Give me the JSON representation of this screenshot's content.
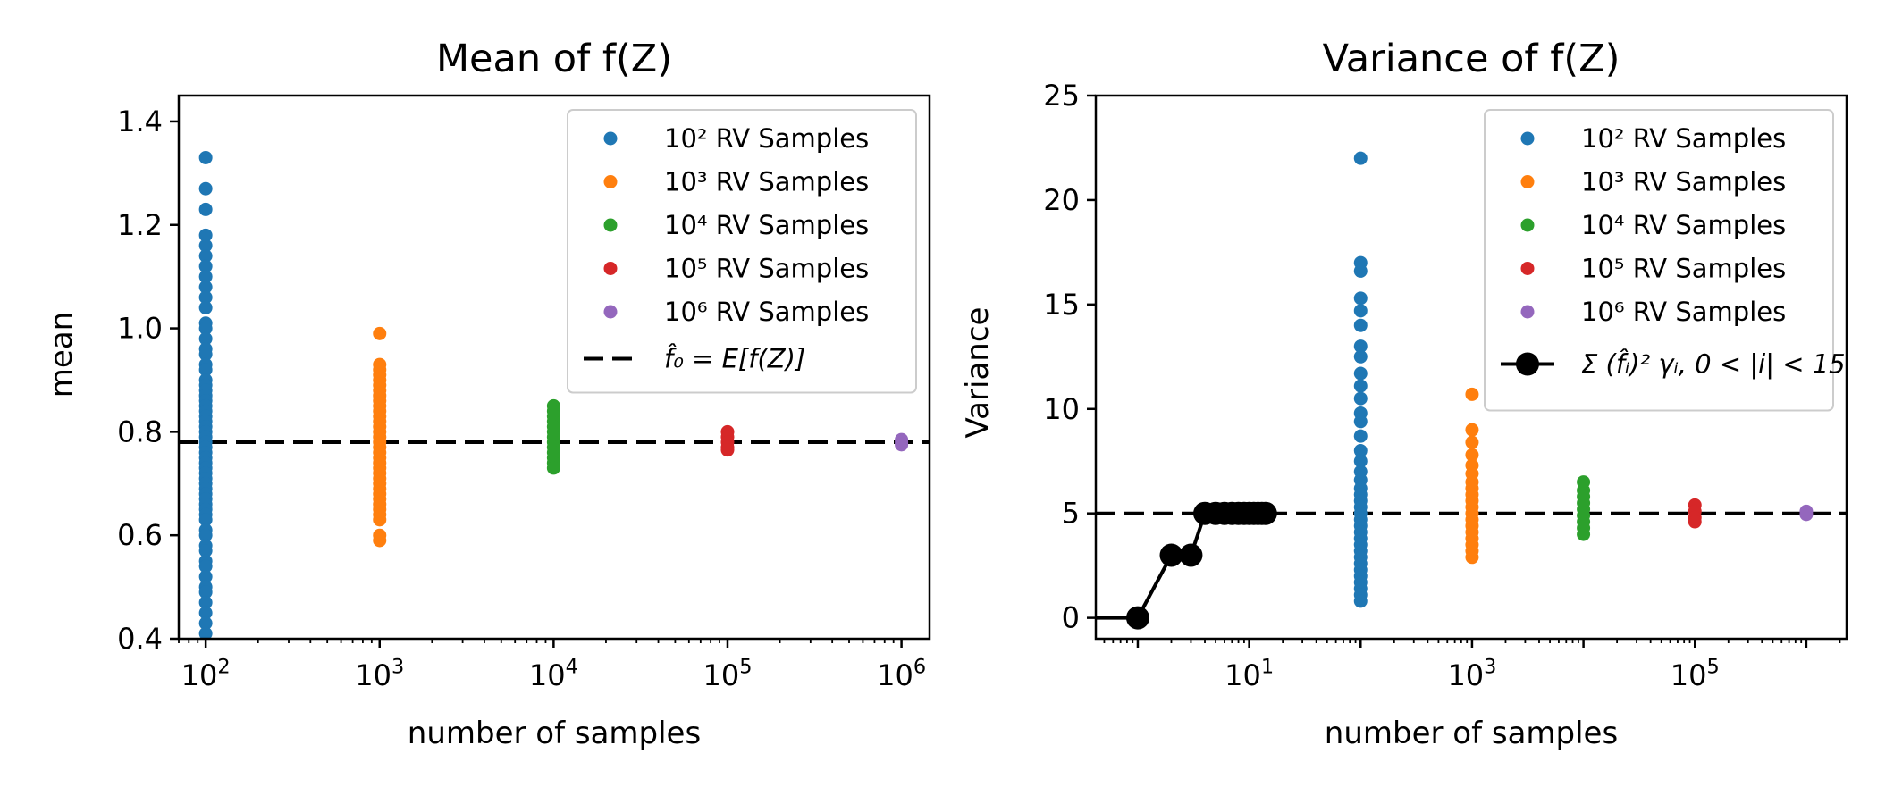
{
  "chart_data": [
    {
      "type": "scatter",
      "title": "Mean of f(Z)",
      "xlabel": "number of samples",
      "ylabel": "mean",
      "xscale": "log",
      "xlim": [
        70,
        1450000
      ],
      "ylim": [
        0.4,
        1.45
      ],
      "yticks": [
        0.4,
        0.6,
        0.8,
        1.0,
        1.2,
        1.4
      ],
      "ytick_labels": [
        "0.4",
        "0.6",
        "0.8",
        "1.0",
        "1.2",
        "1.4"
      ],
      "xticks": [
        100,
        1000,
        10000,
        100000,
        1000000
      ],
      "xtick_labels": [
        {
          "base": "10",
          "exp": "2"
        },
        {
          "base": "10",
          "exp": "3"
        },
        {
          "base": "10",
          "exp": "4"
        },
        {
          "base": "10",
          "exp": "5"
        },
        {
          "base": "10",
          "exp": "6"
        }
      ],
      "legend_position": "top-right",
      "series": [
        {
          "name": "10² RV Samples",
          "color": "#1f77b4",
          "x": 100,
          "values": [
            1.33,
            1.27,
            1.23,
            1.18,
            1.16,
            1.14,
            1.12,
            1.1,
            1.08,
            1.06,
            1.04,
            1.01,
            1.0,
            0.98,
            0.96,
            0.95,
            0.93,
            0.92,
            0.9,
            0.89,
            0.88,
            0.87,
            0.86,
            0.85,
            0.84,
            0.83,
            0.82,
            0.81,
            0.8,
            0.79,
            0.78,
            0.77,
            0.76,
            0.75,
            0.74,
            0.73,
            0.72,
            0.71,
            0.7,
            0.69,
            0.68,
            0.67,
            0.66,
            0.65,
            0.64,
            0.63,
            0.61,
            0.6,
            0.58,
            0.57,
            0.55,
            0.54,
            0.52,
            0.5,
            0.49,
            0.47,
            0.45,
            0.43,
            0.41
          ]
        },
        {
          "name": "10³ RV Samples",
          "color": "#ff7f0e",
          "x": 1000,
          "values": [
            0.99,
            0.93,
            0.92,
            0.91,
            0.9,
            0.89,
            0.88,
            0.87,
            0.86,
            0.85,
            0.84,
            0.83,
            0.82,
            0.81,
            0.8,
            0.79,
            0.78,
            0.77,
            0.76,
            0.75,
            0.74,
            0.73,
            0.72,
            0.71,
            0.7,
            0.69,
            0.68,
            0.67,
            0.66,
            0.65,
            0.64,
            0.63,
            0.6,
            0.59
          ]
        },
        {
          "name": "10⁴ RV Samples",
          "color": "#2ca02c",
          "x": 10000,
          "values": [
            0.85,
            0.84,
            0.83,
            0.82,
            0.81,
            0.8,
            0.79,
            0.78,
            0.77,
            0.76,
            0.75,
            0.74,
            0.73
          ]
        },
        {
          "name": "10⁵ RV Samples",
          "color": "#d62728",
          "x": 100000,
          "values": [
            0.8,
            0.79,
            0.78,
            0.77,
            0.765
          ]
        },
        {
          "name": "10⁶ RV Samples",
          "color": "#9467bd",
          "x": 1000000,
          "values": [
            0.785,
            0.78,
            0.775
          ]
        }
      ],
      "reference_line": {
        "label": "f̂₀ = E[f(Z)]",
        "y": 0.78,
        "color": "#000000",
        "style": "dashed"
      }
    },
    {
      "type": "scatter",
      "title": "Variance of f(Z)",
      "xlabel": "number of samples",
      "ylabel": "Variance",
      "xscale": "log",
      "xlim": [
        0.42,
        2300000
      ],
      "ylim": [
        -1,
        25
      ],
      "yticks": [
        0,
        5,
        10,
        15,
        20,
        25
      ],
      "ytick_labels": [
        "0",
        "5",
        "10",
        "15",
        "20",
        "25"
      ],
      "xticks": [
        10,
        1000,
        100000
      ],
      "xtick_labels": [
        {
          "base": "10",
          "exp": "1"
        },
        {
          "base": "10",
          "exp": "3"
        },
        {
          "base": "10",
          "exp": "5"
        }
      ],
      "legend_position": "top-right",
      "series": [
        {
          "name": "10² RV Samples",
          "color": "#1f77b4",
          "x": 100,
          "values": [
            22.0,
            17.0,
            16.6,
            15.3,
            14.7,
            14.0,
            13.0,
            12.5,
            11.7,
            11.1,
            10.5,
            9.8,
            9.4,
            8.7,
            8.0,
            7.5,
            7.0,
            6.6,
            6.2,
            5.9,
            5.6,
            5.3,
            5.0,
            4.7,
            4.4,
            4.1,
            3.8,
            3.5,
            3.2,
            2.9,
            2.6,
            2.3,
            2.0,
            1.7,
            1.4,
            1.1,
            0.8
          ]
        },
        {
          "name": "10³ RV Samples",
          "color": "#ff7f0e",
          "x": 1000,
          "values": [
            10.7,
            9.0,
            8.4,
            7.8,
            7.3,
            6.9,
            6.5,
            6.2,
            5.9,
            5.6,
            5.3,
            5.0,
            4.7,
            4.4,
            4.1,
            3.8,
            3.5,
            3.2,
            2.9
          ]
        },
        {
          "name": "10⁴ RV Samples",
          "color": "#2ca02c",
          "x": 10000,
          "values": [
            6.5,
            6.1,
            5.8,
            5.5,
            5.2,
            4.9,
            4.6,
            4.3,
            4.0
          ]
        },
        {
          "name": "10⁵ RV Samples",
          "color": "#d62728",
          "x": 100000,
          "values": [
            5.4,
            5.1,
            4.8,
            4.6
          ]
        },
        {
          "name": "10⁶ RV Samples",
          "color": "#9467bd",
          "x": 1000000,
          "values": [
            5.1,
            4.95
          ]
        }
      ],
      "line_series": {
        "name": "Σ (f̂ᵢ)² γᵢ, 0 < |i| < 15",
        "color": "#000000",
        "x": [
          0,
          1,
          2,
          3,
          4,
          5,
          6,
          7,
          8,
          9,
          10,
          11,
          12,
          13,
          14
        ],
        "values": [
          0,
          0,
          3,
          3,
          5,
          5,
          5,
          5,
          5,
          5,
          5,
          5,
          5,
          5,
          5
        ]
      },
      "reference_line": {
        "y": 5.0,
        "color": "#000000",
        "style": "dashed"
      }
    }
  ]
}
